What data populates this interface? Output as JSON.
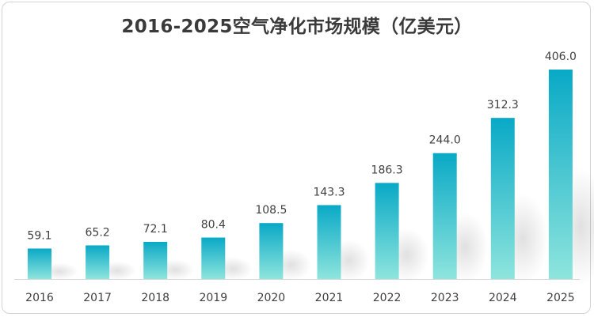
{
  "chart_data": {
    "type": "bar",
    "title": "2016-2025空气净化市场规模（亿美元）",
    "categories": [
      "2016",
      "2017",
      "2018",
      "2019",
      "2020",
      "2021",
      "2022",
      "2023",
      "2024",
      "2025"
    ],
    "values": [
      59.1,
      65.2,
      72.1,
      80.4,
      108.5,
      143.3,
      186.3,
      244.0,
      312.3,
      406.0
    ],
    "value_labels": [
      "59.1",
      "65.2",
      "72.1",
      "80.4",
      "108.5",
      "143.3",
      "186.3",
      "244.0",
      "312.3",
      "406.0"
    ],
    "xlabel": "",
    "ylabel": "",
    "ylim": [
      0,
      420
    ],
    "grid": false,
    "legend": "none",
    "colors": {
      "bar_top": "#09a9c6",
      "bar_bottom": "#8ee5dd",
      "text": "#404040",
      "title": "#3a3a3a"
    }
  }
}
